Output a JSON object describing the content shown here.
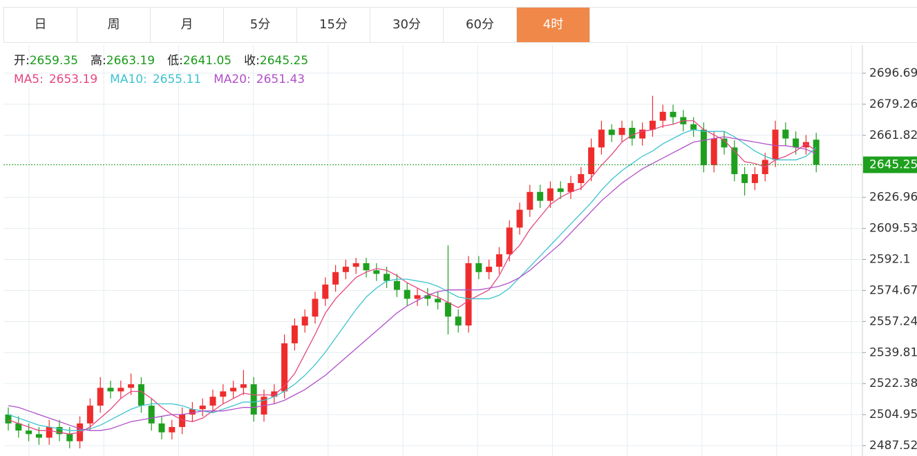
{
  "tabs": [
    "日",
    "周",
    "月",
    "5分",
    "15分",
    "30分",
    "60分",
    "4时"
  ],
  "active_tab": 7,
  "chart_data": {
    "type": "candlestick",
    "info_labels": [
      "开:",
      "高:",
      "低:",
      "收:"
    ],
    "colors": {
      "up": "#ee2c2c",
      "down": "#1ea01e"
    },
    "open": [
      2505,
      2500,
      2496,
      2494,
      2492,
      2498,
      2494,
      2490,
      2500,
      2510,
      2520,
      2518,
      2520,
      2522,
      2510,
      2500,
      2495,
      2498,
      2505,
      2508,
      2510,
      2515,
      2518,
      2520,
      2522,
      2505,
      2515,
      2518,
      2545,
      2555,
      2560,
      2570,
      2578,
      2585,
      2588,
      2590,
      2586,
      2584,
      2580,
      2575,
      2570,
      2572,
      2570,
      2568,
      2560,
      2555,
      2590,
      2585,
      2588,
      2595,
      2610,
      2620,
      2630,
      2625,
      2632,
      2630,
      2635,
      2640,
      2655,
      2665,
      2662,
      2666,
      2660,
      2665,
      2670,
      2675,
      2672,
      2668,
      2665,
      2645,
      2660,
      2655,
      2640,
      2635,
      2640,
      2648,
      2665,
      2660,
      2655,
      2659.35
    ],
    "high": [
      2509,
      2504,
      2500,
      2498,
      2502,
      2502,
      2498,
      2504,
      2514,
      2526,
      2524,
      2524,
      2528,
      2526,
      2514,
      2504,
      2502,
      2509,
      2512,
      2514,
      2519,
      2522,
      2524,
      2530,
      2526,
      2519,
      2522,
      2550,
      2559,
      2564,
      2574,
      2582,
      2589,
      2592,
      2593,
      2593,
      2590,
      2588,
      2584,
      2579,
      2576,
      2576,
      2574,
      2600,
      2564,
      2594,
      2594,
      2592,
      2599,
      2614,
      2624,
      2634,
      2634,
      2636,
      2636,
      2639,
      2644,
      2660,
      2670,
      2668,
      2670,
      2670,
      2669,
      2684,
      2679,
      2679,
      2676,
      2672,
      2669,
      2664,
      2664,
      2659,
      2644,
      2644,
      2652,
      2670,
      2669,
      2664,
      2662,
      2663.19
    ],
    "low": [
      2496,
      2492,
      2490,
      2488,
      2488,
      2490,
      2486,
      2486,
      2496,
      2506,
      2514,
      2514,
      2516,
      2506,
      2496,
      2491,
      2491,
      2494,
      2501,
      2504,
      2506,
      2511,
      2514,
      2516,
      2501,
      2501,
      2511,
      2514,
      2541,
      2551,
      2556,
      2566,
      2574,
      2581,
      2584,
      2582,
      2580,
      2576,
      2571,
      2566,
      2566,
      2566,
      2564,
      2550,
      2551,
      2551,
      2581,
      2581,
      2584,
      2591,
      2606,
      2616,
      2621,
      2621,
      2626,
      2626,
      2631,
      2636,
      2651,
      2658,
      2658,
      2656,
      2656,
      2661,
      2666,
      2668,
      2664,
      2661,
      2641,
      2641,
      2651,
      2636,
      2628,
      2631,
      2636,
      2644,
      2656,
      2651,
      2651,
      2641.05
    ],
    "close": [
      2500,
      2496,
      2494,
      2492,
      2498,
      2494,
      2490,
      2500,
      2510,
      2520,
      2518,
      2520,
      2522,
      2510,
      2500,
      2495,
      2498,
      2505,
      2508,
      2510,
      2515,
      2518,
      2520,
      2522,
      2505,
      2515,
      2518,
      2545,
      2555,
      2560,
      2570,
      2578,
      2585,
      2588,
      2590,
      2586,
      2584,
      2580,
      2575,
      2570,
      2572,
      2570,
      2568,
      2560,
      2555,
      2590,
      2585,
      2588,
      2595,
      2610,
      2620,
      2630,
      2625,
      2632,
      2630,
      2635,
      2640,
      2655,
      2665,
      2662,
      2666,
      2660,
      2665,
      2670,
      2675,
      2672,
      2668,
      2665,
      2645,
      2660,
      2655,
      2640,
      2635,
      2640,
      2648,
      2665,
      2660,
      2655,
      2658,
      2645.25
    ],
    "series": [
      {
        "name": "MA5:",
        "color": "#e5467f",
        "values": [
          2502,
          2500,
          2498,
          2496,
          2496,
          2495,
          2494,
          2495,
          2498,
          2503,
          2508,
          2514,
          2518,
          2518,
          2514,
          2509,
          2505,
          2502,
          2501,
          2503,
          2507,
          2511,
          2514,
          2517,
          2516,
          2516,
          2516,
          2521,
          2528,
          2539,
          2550,
          2562,
          2570,
          2576,
          2582,
          2585,
          2587,
          2586,
          2583,
          2579,
          2576,
          2573,
          2571,
          2568,
          2565,
          2569,
          2572,
          2575,
          2583,
          2594,
          2600,
          2609,
          2616,
          2623,
          2627,
          2630,
          2632,
          2638,
          2645,
          2651,
          2658,
          2662,
          2664,
          2665,
          2667,
          2668,
          2670,
          2670,
          2665,
          2662,
          2659,
          2653,
          2647,
          2646,
          2644,
          2648,
          2650,
          2653,
          2657,
          2653.19
        ]
      },
      {
        "name": "MA10:",
        "color": "#3cc3cf",
        "values": [
          2505,
          2503,
          2501,
          2499,
          2498,
          2497,
          2496,
          2496,
          2497,
          2499,
          2502,
          2505,
          2508,
          2510,
          2511,
          2511,
          2511,
          2510,
          2508,
          2507,
          2506,
          2508,
          2510,
          2512,
          2512,
          2513,
          2515,
          2518,
          2522,
          2527,
          2533,
          2540,
          2548,
          2556,
          2564,
          2571,
          2576,
          2580,
          2581,
          2581,
          2580,
          2579,
          2577,
          2574,
          2571,
          2570,
          2570,
          2570,
          2572,
          2576,
          2582,
          2588,
          2594,
          2600,
          2606,
          2612,
          2618,
          2624,
          2631,
          2637,
          2642,
          2646,
          2650,
          2653,
          2657,
          2660,
          2663,
          2665,
          2664,
          2664,
          2664,
          2661,
          2657,
          2653,
          2650,
          2648,
          2648,
          2648,
          2650,
          2655.11
        ]
      },
      {
        "name": "MA20:",
        "color": "#b050c8",
        "values": [
          2510,
          2509,
          2507,
          2505,
          2503,
          2501,
          2499,
          2497,
          2496,
          2496,
          2497,
          2499,
          2501,
          2502,
          2503,
          2504,
          2505,
          2505,
          2506,
          2507,
          2507,
          2507,
          2508,
          2509,
          2509,
          2510,
          2511,
          2513,
          2516,
          2519,
          2523,
          2527,
          2532,
          2537,
          2542,
          2547,
          2552,
          2557,
          2562,
          2566,
          2569,
          2572,
          2574,
          2575,
          2575,
          2575,
          2575,
          2576,
          2577,
          2579,
          2582,
          2586,
          2591,
          2596,
          2601,
          2607,
          2613,
          2619,
          2625,
          2630,
          2635,
          2639,
          2643,
          2646,
          2649,
          2652,
          2655,
          2658,
          2659,
          2660,
          2661,
          2660,
          2659,
          2658,
          2657,
          2656,
          2656,
          2655,
          2654,
          2651.43
        ]
      }
    ],
    "ylim": [
      2481.71,
      2712.57
    ],
    "yticks": [
      2487.52,
      2504.95,
      2522.38,
      2539.81,
      2557.24,
      2574.67,
      2592.1,
      2609.53,
      2626.96,
      2679.26,
      2696.69,
      {
        "value": 2661.82,
        "label": "2661.82"
      }
    ],
    "grid": true
  }
}
